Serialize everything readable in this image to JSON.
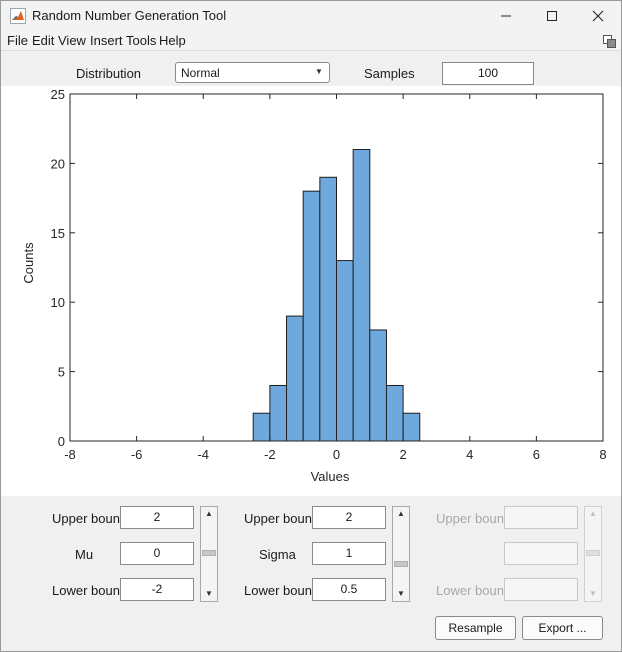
{
  "window": {
    "title": "Random Number Generation Tool"
  },
  "menubar": {
    "items": [
      "File",
      "Edit",
      "View",
      "Insert",
      "Tools",
      "Help"
    ]
  },
  "controls": {
    "distribution_label": "Distribution",
    "distribution_value": "Normal",
    "samples_label": "Samples",
    "samples_value": "100"
  },
  "chart_data": {
    "type": "bar",
    "xlabel": "Values",
    "ylabel": "Counts",
    "xlim": [
      -8,
      8
    ],
    "ylim": [
      0,
      25
    ],
    "xticks": [
      -8,
      -6,
      -4,
      -2,
      0,
      2,
      4,
      6,
      8
    ],
    "yticks": [
      0,
      5,
      10,
      15,
      20,
      25
    ],
    "bin_width": 0.5,
    "bin_edges": [
      -2.5,
      -2.0,
      -1.5,
      -1.0,
      -0.5,
      0.0,
      0.5,
      1.0,
      1.5,
      2.0,
      2.5
    ],
    "values": [
      2,
      4,
      9,
      18,
      19,
      13,
      21,
      8,
      4,
      2
    ],
    "bar_color": "#6fa8dc",
    "edge_color": "#1f1f1f"
  },
  "params": {
    "col1": {
      "upper_label": "Upper bound",
      "upper_value": "2",
      "mid_label": "Mu",
      "mid_value": "0",
      "lower_label": "Lower bound",
      "lower_value": "-2"
    },
    "col2": {
      "upper_label": "Upper bound",
      "upper_value": "2",
      "mid_label": "Sigma",
      "mid_value": "1",
      "lower_label": "Lower bound",
      "lower_value": "0.5"
    },
    "col3": {
      "upper_label": "Upper bound",
      "lower_label": "Lower bound"
    }
  },
  "buttons": {
    "resample": "Resample",
    "export": "Export ..."
  }
}
